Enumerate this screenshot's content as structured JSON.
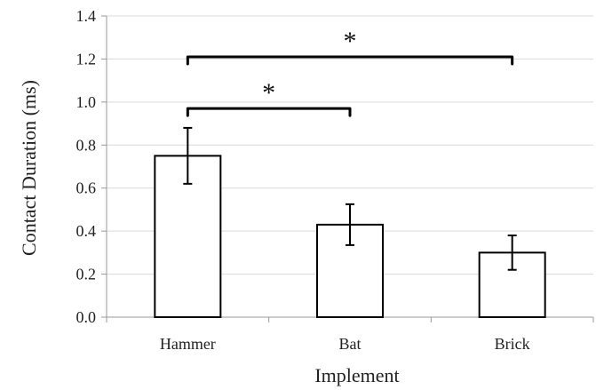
{
  "chart_data": {
    "type": "bar",
    "title": "",
    "xlabel": "Implement",
    "ylabel": "Contact Duration (ms)",
    "categories": [
      "Hammer",
      "Bat",
      "Brick"
    ],
    "values": [
      0.75,
      0.43,
      0.3
    ],
    "error_bars": [
      0.13,
      0.095,
      0.08
    ],
    "ylim": [
      0.0,
      1.4
    ],
    "yticks": [
      "0.0",
      "0.2",
      "0.4",
      "0.6",
      "0.8",
      "1.0",
      "1.2",
      "1.4"
    ],
    "grid": true,
    "legend": "none",
    "significance": [
      {
        "from": "Hammer",
        "to": "Bat",
        "label": "*",
        "y": 0.97
      },
      {
        "from": "Hammer",
        "to": "Brick",
        "label": "*",
        "y": 1.21
      }
    ],
    "colors": {
      "bar_fill": "#ffffff",
      "bar_stroke": "#000000",
      "grid": "#d9d9d9",
      "axis": "#999999"
    }
  }
}
